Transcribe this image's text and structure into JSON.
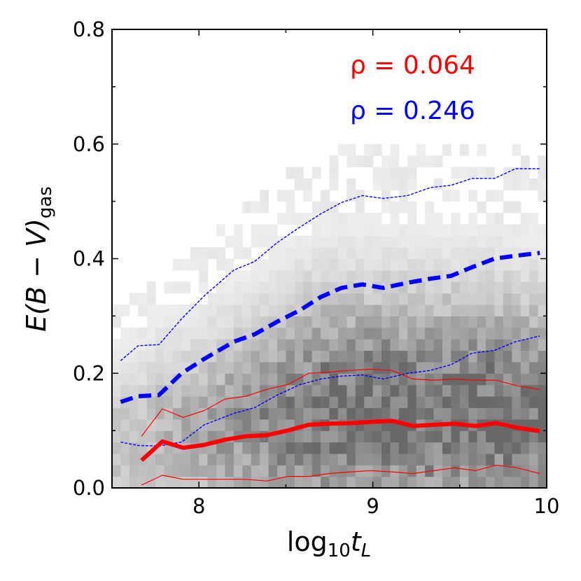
{
  "chart_data": {
    "type": "line",
    "title": "",
    "xlabel": {
      "base": "log",
      "base_sub": "10",
      "var": "t",
      "var_sub": "L"
    },
    "ylabel": {
      "main": "E(B − V)",
      "sub": "gas"
    },
    "xlim": [
      7.5,
      10.0
    ],
    "ylim": [
      0.0,
      0.8
    ],
    "xticks": [
      8,
      9,
      10
    ],
    "xtick_labels": [
      "8",
      "9",
      "10"
    ],
    "yticks": [
      0.0,
      0.2,
      0.4,
      0.6,
      0.8
    ],
    "ytick_labels": [
      "0.0",
      "0.2",
      "0.4",
      "0.6",
      "0.8"
    ],
    "annotations": [
      {
        "label": "ρ = 0.064",
        "color": "#ff0000"
      },
      {
        "label": "ρ = 0.246",
        "color": "#0000ff"
      }
    ],
    "background": {
      "type": "heatmap",
      "colormap": "Greys",
      "description": "2D histogram density of galaxies",
      "x_bin_width": 0.05,
      "y_bin_width": 0.02
    },
    "series": [
      {
        "name": "blue median",
        "color": "#0000ff",
        "style": "dashed-thick",
        "x": [
          7.55,
          7.65,
          7.77,
          7.9,
          8.03,
          8.2,
          8.32,
          8.45,
          8.58,
          8.7,
          8.82,
          8.94,
          9.06,
          9.2,
          9.33,
          9.45,
          9.57,
          9.7,
          9.82,
          9.96
        ],
        "values": [
          0.15,
          0.16,
          0.162,
          0.2,
          0.225,
          0.255,
          0.268,
          0.29,
          0.31,
          0.333,
          0.349,
          0.355,
          0.349,
          0.358,
          0.365,
          0.37,
          0.385,
          0.4,
          0.405,
          0.41
        ]
      },
      {
        "name": "blue upper percentile",
        "color": "#0000ff",
        "style": "dashed-thin",
        "x": [
          7.55,
          7.65,
          7.77,
          7.9,
          8.03,
          8.2,
          8.32,
          8.45,
          8.58,
          8.7,
          8.82,
          8.94,
          9.06,
          9.2,
          9.33,
          9.45,
          9.57,
          9.7,
          9.82,
          9.96
        ],
        "values": [
          0.222,
          0.248,
          0.25,
          0.295,
          0.335,
          0.38,
          0.395,
          0.428,
          0.455,
          0.478,
          0.498,
          0.51,
          0.505,
          0.51,
          0.524,
          0.528,
          0.54,
          0.54,
          0.557,
          0.557
        ]
      },
      {
        "name": "blue lower percentile",
        "color": "#0000ff",
        "style": "dashed-thin",
        "x": [
          7.55,
          7.65,
          7.77,
          7.9,
          8.03,
          8.2,
          8.32,
          8.45,
          8.58,
          8.7,
          8.82,
          8.94,
          9.06,
          9.2,
          9.33,
          9.45,
          9.57,
          9.7,
          9.82,
          9.96
        ],
        "values": [
          0.08,
          0.074,
          0.073,
          0.08,
          0.11,
          0.13,
          0.14,
          0.162,
          0.18,
          0.19,
          0.195,
          0.197,
          0.19,
          0.2,
          0.205,
          0.215,
          0.235,
          0.24,
          0.255,
          0.265
        ]
      },
      {
        "name": "red median",
        "color": "#ff0000",
        "style": "solid-thick",
        "x": [
          7.67,
          7.79,
          7.91,
          8.03,
          8.15,
          8.27,
          8.39,
          8.51,
          8.63,
          8.75,
          8.87,
          8.99,
          9.11,
          9.23,
          9.35,
          9.47,
          9.59,
          9.71,
          9.83,
          9.96
        ],
        "values": [
          0.048,
          0.081,
          0.07,
          0.075,
          0.084,
          0.09,
          0.092,
          0.1,
          0.11,
          0.112,
          0.113,
          0.115,
          0.117,
          0.108,
          0.11,
          0.112,
          0.108,
          0.113,
          0.105,
          0.099
        ]
      },
      {
        "name": "red upper percentile",
        "color": "#ff0000",
        "style": "solid-thin",
        "x": [
          7.67,
          7.79,
          7.91,
          8.03,
          8.15,
          8.27,
          8.39,
          8.51,
          8.63,
          8.75,
          8.87,
          8.99,
          9.11,
          9.23,
          9.35,
          9.47,
          9.59,
          9.71,
          9.83,
          9.96
        ],
        "values": [
          0.09,
          0.138,
          0.123,
          0.135,
          0.155,
          0.16,
          0.172,
          0.18,
          0.2,
          0.202,
          0.205,
          0.207,
          0.205,
          0.19,
          0.188,
          0.19,
          0.188,
          0.188,
          0.178,
          0.172
        ]
      },
      {
        "name": "red lower percentile",
        "color": "#ff0000",
        "style": "solid-thin",
        "x": [
          7.67,
          7.79,
          7.91,
          8.03,
          8.15,
          8.27,
          8.39,
          8.51,
          8.63,
          8.75,
          8.87,
          8.99,
          9.11,
          9.23,
          9.35,
          9.47,
          9.59,
          9.71,
          9.83,
          9.96
        ],
        "values": [
          0.005,
          0.022,
          0.015,
          0.015,
          0.015,
          0.015,
          0.012,
          0.02,
          0.02,
          0.025,
          0.028,
          0.03,
          0.028,
          0.025,
          0.03,
          0.035,
          0.03,
          0.04,
          0.035,
          0.025
        ]
      }
    ]
  }
}
